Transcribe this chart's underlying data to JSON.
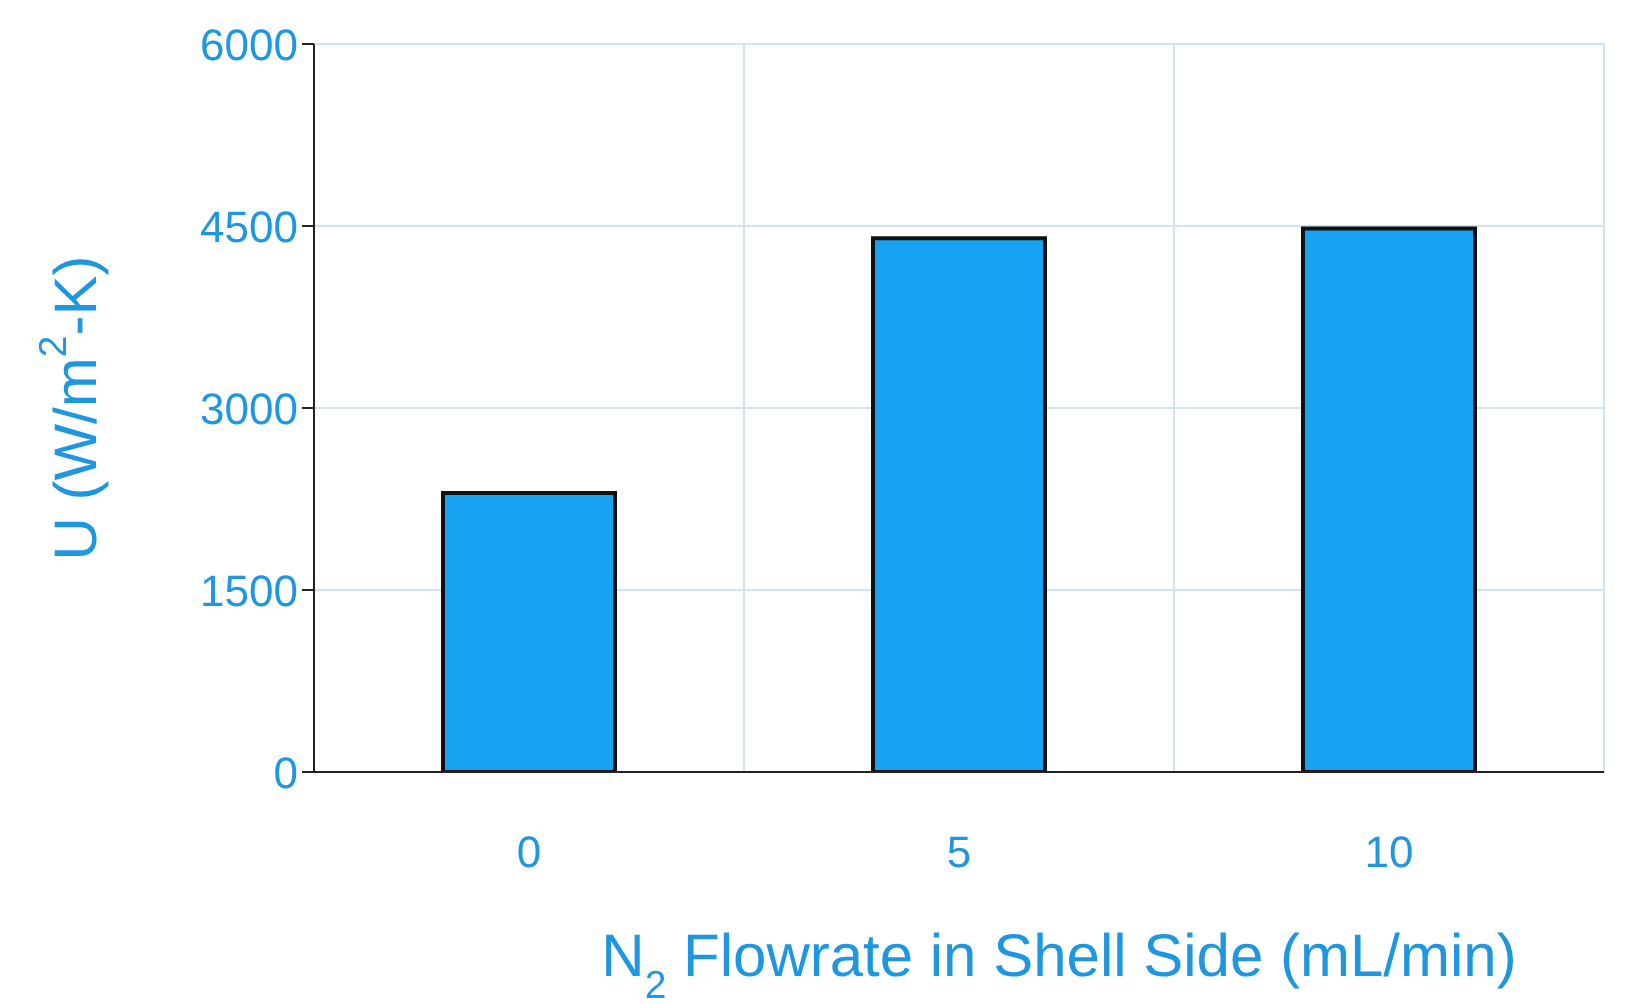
{
  "chart_data": {
    "type": "bar",
    "xlabel": "N$_{2}$ Flowrate in Shell Side (mL/min)",
    "ylabel": "U (W/m$^{2}$-K)",
    "categories": [
      "0",
      "5",
      "10"
    ],
    "values": [
      2300,
      4400,
      4480
    ],
    "color": "#18a2f2",
    "ylim": [
      0,
      6000
    ],
    "yticks": [
      0,
      1500,
      3000,
      4500,
      6000
    ],
    "grid": true
  }
}
